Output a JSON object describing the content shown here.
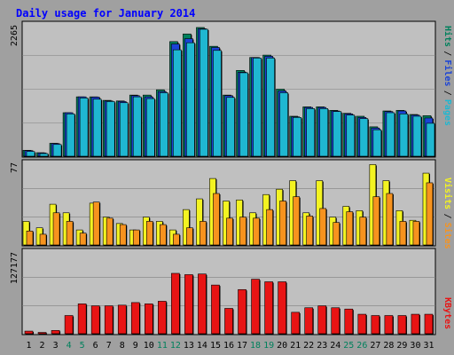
{
  "chart_data": [
    {
      "panel": "top",
      "type": "bar",
      "title": "Daily usage for January 2014",
      "ylabel_max": "2265",
      "legend": [
        {
          "label": "Pages",
          "color": "#1fb7d1"
        },
        {
          "label": "Files",
          "color": "#1a43d6"
        },
        {
          "label": "Hits",
          "color": "#00805c"
        }
      ],
      "ylim": [
        0,
        2265
      ],
      "categories": [
        1,
        2,
        3,
        4,
        5,
        6,
        7,
        8,
        9,
        10,
        11,
        12,
        13,
        14,
        15,
        16,
        17,
        18,
        19,
        20,
        21,
        22,
        23,
        24,
        25,
        26,
        27,
        28,
        29,
        30,
        31
      ],
      "series": [
        {
          "name": "Hits",
          "values": [
            100,
            60,
            220,
            740,
            1010,
            1010,
            950,
            940,
            1040,
            1040,
            1130,
            1950,
            2080,
            2190,
            1870,
            1040,
            1460,
            1680,
            1720,
            1140,
            680,
            840,
            840,
            780,
            730,
            680,
            500,
            770,
            780,
            710,
            690
          ]
        },
        {
          "name": "Files",
          "values": [
            95,
            55,
            215,
            740,
            1010,
            1005,
            940,
            930,
            1030,
            1010,
            1100,
            1910,
            2000,
            2170,
            1850,
            1030,
            1430,
            1680,
            1700,
            1110,
            670,
            830,
            830,
            770,
            720,
            660,
            480,
            760,
            770,
            700,
            650
          ]
        },
        {
          "name": "Pages",
          "values": [
            80,
            45,
            200,
            720,
            990,
            970,
            930,
            910,
            1010,
            980,
            1080,
            1810,
            1930,
            2160,
            1800,
            1000,
            1420,
            1670,
            1670,
            1080,
            660,
            810,
            810,
            760,
            700,
            640,
            450,
            740,
            720,
            680,
            560
          ]
        }
      ]
    },
    {
      "panel": "middle",
      "type": "bar",
      "ylabel_max": "77",
      "legend": [
        {
          "label": "Sites",
          "color": "#f7931e"
        },
        {
          "label": "Visits",
          "color": "#f3f322"
        }
      ],
      "ylim": [
        0,
        77
      ],
      "categories": [
        1,
        2,
        3,
        4,
        5,
        6,
        7,
        8,
        9,
        10,
        11,
        12,
        13,
        14,
        15,
        16,
        17,
        18,
        19,
        20,
        21,
        22,
        23,
        24,
        25,
        26,
        27,
        28,
        29,
        30,
        31
      ],
      "series": [
        {
          "name": "Visits",
          "values": [
            22,
            16,
            38,
            30,
            14,
            39,
            26,
            20,
            14,
            26,
            22,
            14,
            33,
            43,
            62,
            41,
            42,
            30,
            47,
            52,
            60,
            30,
            60,
            26,
            36,
            32,
            75,
            60,
            32,
            23,
            67
          ]
        },
        {
          "name": "Sites",
          "values": [
            13,
            10,
            30,
            22,
            11,
            40,
            25,
            19,
            14,
            22,
            19,
            10,
            16,
            22,
            48,
            25,
            26,
            25,
            33,
            41,
            45,
            27,
            34,
            21,
            31,
            26,
            45,
            48,
            22,
            22,
            58
          ]
        }
      ]
    },
    {
      "panel": "bottom",
      "type": "bar",
      "ylabel_max": "127177",
      "legend": [
        {
          "label": "KBytes",
          "color": "#e81414"
        }
      ],
      "ylim": [
        0,
        127177
      ],
      "categories": [
        1,
        2,
        3,
        4,
        5,
        6,
        7,
        8,
        9,
        10,
        11,
        12,
        13,
        14,
        15,
        16,
        17,
        18,
        19,
        20,
        21,
        22,
        23,
        24,
        25,
        26,
        27,
        28,
        29,
        30,
        31
      ],
      "series": [
        {
          "name": "KBytes",
          "values": [
            4000,
            2000,
            5000,
            28000,
            46000,
            43000,
            43000,
            44000,
            48000,
            46000,
            50000,
            93000,
            91000,
            92000,
            75000,
            39000,
            68000,
            84000,
            80000,
            80000,
            33000,
            40000,
            43000,
            40000,
            38000,
            30000,
            28000,
            28000,
            28000,
            30000,
            30000
          ]
        }
      ],
      "x_tick_labels": [
        "1",
        "2",
        "3",
        "4",
        "5",
        "6",
        "7",
        "8",
        "9",
        "10",
        "11",
        "12",
        "13",
        "14",
        "15",
        "16",
        "17",
        "18",
        "19",
        "20",
        "21",
        "22",
        "23",
        "24",
        "25",
        "26",
        "27",
        "28",
        "29",
        "30",
        "31"
      ],
      "weekend_days": [
        4,
        5,
        11,
        12,
        18,
        19,
        25,
        26
      ],
      "weekend_color": "#00805c",
      "weekday_color": "#000000"
    }
  ],
  "colors": {
    "frame": "#a0a0a0",
    "plot_bg": "#c0c0c0",
    "title_color": "#0000ff",
    "grid": "#808080"
  }
}
